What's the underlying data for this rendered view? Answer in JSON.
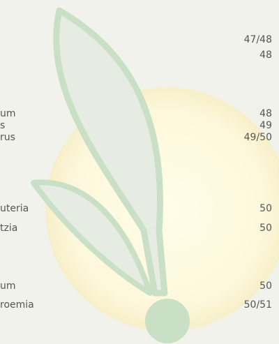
{
  "entries": [
    {
      "page": "47/48"
    },
    {
      "page": "48"
    },
    {
      "title": "um",
      "page": "48"
    },
    {
      "title": "s",
      "page": "49"
    },
    {
      "title": "rus",
      "page": "49/50"
    },
    {
      "title": "uteria",
      "page": "50"
    },
    {
      "title": "tzia",
      "page": "50"
    },
    {
      "title": "um",
      "page": "50"
    },
    {
      "title": "roemia",
      "page": "50/51"
    }
  ]
}
